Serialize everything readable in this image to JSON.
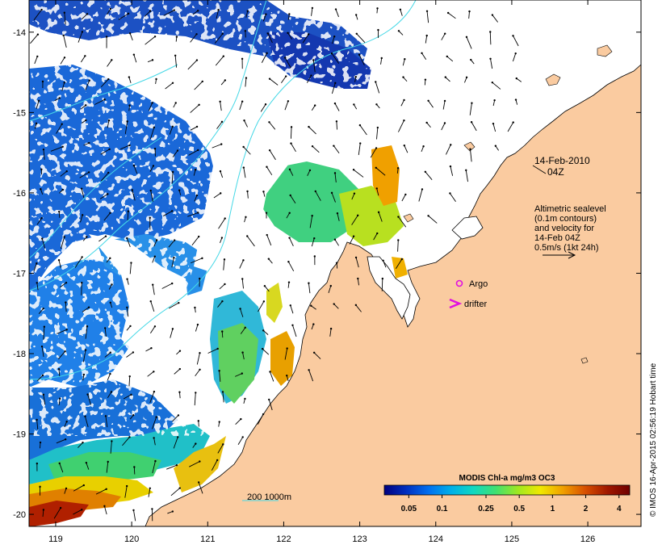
{
  "map": {
    "lon_ticks": [
      "119",
      "120",
      "121",
      "122",
      "123",
      "124",
      "125",
      "126"
    ],
    "lat_ticks": [
      "-14",
      "-15",
      "-16",
      "-17",
      "-18",
      "-19",
      "-20"
    ],
    "lon_values": [
      119,
      120,
      121,
      122,
      123,
      124,
      125,
      126
    ],
    "lat_values": [
      -14,
      -15,
      -16,
      -17,
      -18,
      -19,
      -20
    ],
    "lon_range": [
      118.65,
      126.7
    ],
    "lat_range": [
      -20.15,
      -13.6
    ],
    "colors": {
      "land": "#FACBA0",
      "no_data": "#FFFFFF",
      "contour": "#45D8E6",
      "argo": "#E010E0",
      "drifter": "#E010E0"
    }
  },
  "annotations": {
    "date_line1": "14-Feb-2010",
    "date_line2": "04Z",
    "altimetry": [
      "Altimetric sealevel",
      "(0.1m contours)",
      "and velocity for",
      "14-Feb 04Z",
      "0.5m/s (1kt 24h)"
    ],
    "argo_label": "Argo",
    "drifter_label": "drifter",
    "depth_legend": "200 1000m"
  },
  "colorbar": {
    "title": "MODIS Chl-a mg/m3 OC3",
    "ticks": [
      "0.05",
      "0.1",
      "0.25",
      "0.5",
      "1",
      "2",
      "4"
    ],
    "tick_values": [
      0.05,
      0.1,
      0.25,
      0.5,
      1,
      2,
      4
    ],
    "range": [
      0.03,
      5
    ],
    "scale": "log",
    "colors": [
      "#00007F",
      "#0030C0",
      "#0070F0",
      "#00B0E8",
      "#10D8C0",
      "#40E070",
      "#A0E820",
      "#F0E800",
      "#F0A000",
      "#D85000",
      "#A01800",
      "#700000"
    ]
  },
  "credit": "© IMOS 16-Apr-2015 02:56:19 Hobart time"
}
